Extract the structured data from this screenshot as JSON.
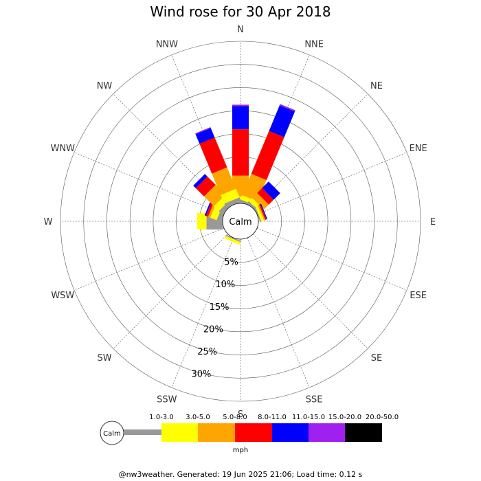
{
  "title": "Wind rose for 30 Apr 2018",
  "footer": "@nw3weather. Generated: 19 Jun 2025 21:06; Load time: 0.12 s",
  "chart_data": {
    "type": "windrose",
    "directions": [
      "N",
      "NNE",
      "NE",
      "ENE",
      "E",
      "ESE",
      "SE",
      "SSE",
      "S",
      "SSW",
      "SW",
      "WSW",
      "W",
      "WNW",
      "NW",
      "NNW"
    ],
    "radial_ticks": [
      "5%",
      "10%",
      "15%",
      "20%",
      "25%",
      "30%"
    ],
    "radial_values": [
      5,
      10,
      15,
      20,
      25,
      30
    ],
    "radial_max": 35,
    "calm_label": "Calm",
    "units": "mph",
    "bins": [
      {
        "label": "1.0-3.0",
        "color": "#999999"
      },
      {
        "label": "3.0-5.0",
        "color": "#ffff00"
      },
      {
        "label": "5.0-8.0",
        "color": "#ffa500"
      },
      {
        "label": "8.0-11.0",
        "color": "#ff0000"
      },
      {
        "label": "11.0-15.0",
        "color": "#0000ff"
      },
      {
        "label": "15.0-20.0",
        "color": "#a020f0"
      },
      {
        "label": "20.0-50.0",
        "color": "#000000"
      }
    ],
    "series": [
      {
        "direction": "N",
        "values": [
          0.5,
          1.0,
          4.5,
          10.0,
          5.0,
          0.3,
          0
        ]
      },
      {
        "direction": "NNE",
        "values": [
          0.5,
          1.0,
          5.0,
          10.0,
          6.0,
          0.3,
          0
        ]
      },
      {
        "direction": "NE",
        "values": [
          0.5,
          1.0,
          1.5,
          1.5,
          2.0,
          0,
          0
        ]
      },
      {
        "direction": "ENE",
        "values": [
          0.3,
          0.6,
          0.3,
          0.3,
          0.2,
          0,
          0
        ]
      },
      {
        "direction": "E",
        "values": [
          0,
          0,
          0,
          0,
          0,
          0,
          0
        ]
      },
      {
        "direction": "ESE",
        "values": [
          0,
          0,
          0,
          0,
          0,
          0,
          0
        ]
      },
      {
        "direction": "SE",
        "values": [
          0,
          0,
          0,
          0,
          0,
          0,
          0
        ]
      },
      {
        "direction": "SSE",
        "values": [
          0,
          0,
          0,
          0,
          0,
          0,
          0
        ]
      },
      {
        "direction": "S",
        "values": [
          0,
          0,
          0,
          0,
          0,
          0,
          0
        ]
      },
      {
        "direction": "SSW",
        "values": [
          0.3,
          0.6,
          0,
          0,
          0,
          0,
          0
        ]
      },
      {
        "direction": "SW",
        "values": [
          0,
          0,
          0,
          0,
          0,
          0,
          0
        ]
      },
      {
        "direction": "WSW",
        "values": [
          0,
          0,
          0,
          0,
          0,
          0,
          0
        ]
      },
      {
        "direction": "W",
        "values": [
          3.5,
          2.0,
          0,
          0,
          0,
          0,
          0
        ]
      },
      {
        "direction": "WNW",
        "values": [
          1.0,
          1.5,
          0.5,
          0.5,
          0.3,
          0,
          0
        ]
      },
      {
        "direction": "NW",
        "values": [
          1.0,
          1.5,
          3.0,
          2.5,
          0.8,
          0,
          0
        ]
      },
      {
        "direction": "NNW",
        "values": [
          1.0,
          2.0,
          5.0,
          7.0,
          2.2,
          0.2,
          0
        ]
      }
    ]
  }
}
